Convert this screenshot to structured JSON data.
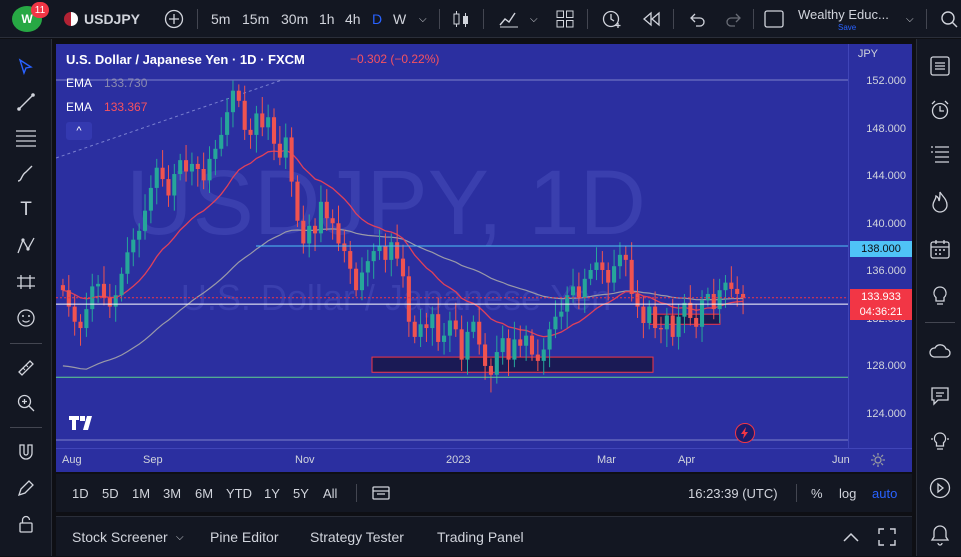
{
  "topbar": {
    "logo_text": "W",
    "notification_count": "11",
    "symbol": "USDJPY",
    "intervals": [
      "5m",
      "15m",
      "30m",
      "1h",
      "4h",
      "D",
      "W"
    ],
    "active_interval": "D",
    "layout_name": "Wealthy Educ...",
    "layout_sub": "Save"
  },
  "legend": {
    "title": "U.S. Dollar / Japanese Yen · 1D · FXCM",
    "change": "−0.302 (−0.22%)",
    "ema1_label": "EMA",
    "ema1_value": "133.730",
    "ema2_label": "EMA",
    "ema2_value": "133.367",
    "collapse": "^"
  },
  "watermark": {
    "big": "USDJPY, 1D",
    "small": "U.S. Dollar / Japanese Yen"
  },
  "price_axis": {
    "currency": "JPY",
    "labels": [
      "152.000",
      "148.000",
      "144.000",
      "140.000",
      "136.000",
      "132.000",
      "128.000",
      "124.000"
    ],
    "line_tag": "138.000",
    "current_price": "133.933",
    "countdown": "04:36:21"
  },
  "time_axis": {
    "labels": [
      "Aug",
      "Sep",
      "Nov",
      "2023",
      "Mar",
      "Apr",
      "Jun"
    ]
  },
  "range_bar": {
    "ranges": [
      "1D",
      "5D",
      "1M",
      "3M",
      "6M",
      "YTD",
      "1Y",
      "5Y",
      "All"
    ],
    "clock": "16:23:39 (UTC)",
    "percent": "%",
    "log": "log",
    "auto": "auto"
  },
  "bottom_panel": {
    "tabs": [
      "Stock Screener",
      "Pine Editor",
      "Strategy Tester",
      "Trading Panel"
    ]
  },
  "colors": {
    "chart_bg": "#2b2fa0",
    "up": "#26a69a",
    "down": "#ef5350",
    "ema_fast": "#e0405a",
    "ema_slow": "#9a9aa8",
    "hline": "#4fc3f7",
    "accent": "#2962ff"
  },
  "chart_data": {
    "type": "candlestick",
    "ylim": [
      122,
      154
    ],
    "horizontal_levels": [
      138.0,
      133.4,
      127.6
    ],
    "candles_close": [
      134.5,
      133.2,
      132.0,
      131.5,
      133.0,
      134.8,
      135.0,
      133.9,
      133.2,
      134.1,
      135.8,
      137.5,
      138.5,
      139.2,
      140.8,
      142.6,
      144.2,
      143.3,
      142.0,
      143.7,
      144.8,
      143.9,
      144.5,
      144.1,
      143.2,
      144.9,
      145.7,
      146.8,
      148.6,
      150.3,
      149.5,
      147.2,
      146.8,
      148.5,
      147.4,
      148.2,
      146.1,
      145.0,
      146.6,
      143.1,
      140.0,
      138.2,
      139.6,
      139.0,
      141.5,
      140.2,
      139.8,
      138.2,
      137.6,
      136.2,
      134.5,
      135.9,
      136.8,
      137.6,
      138.0,
      136.9,
      138.3,
      137.0,
      135.6,
      132.0,
      130.8,
      131.8,
      131.5,
      132.6,
      130.4,
      130.9,
      132.1,
      131.4,
      129.0,
      131.2,
      132.0,
      130.2,
      128.5,
      127.8,
      129.6,
      130.7,
      129.0,
      130.6,
      130.1,
      130.9,
      129.4,
      128.9,
      129.8,
      131.4,
      132.4,
      132.8,
      134.1,
      134.8,
      133.9,
      135.4,
      136.1,
      136.7,
      136.1,
      135.1,
      136.4,
      137.3,
      136.9,
      134.2,
      133.2,
      131.9,
      133.2,
      131.5,
      131.4,
      132.5,
      130.8,
      132.4,
      133.5,
      132.3,
      131.6,
      133.7,
      134.2,
      133.0,
      134.5,
      135.1,
      134.6,
      134.2,
      133.9
    ]
  }
}
